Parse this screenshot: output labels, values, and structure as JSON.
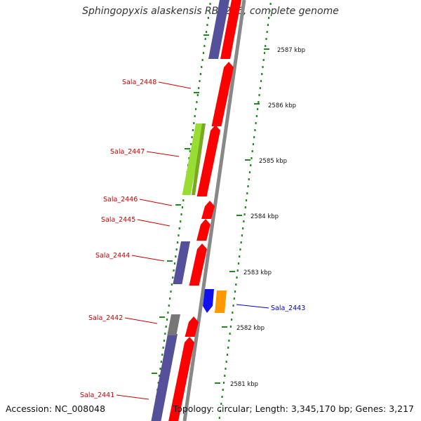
{
  "title": "Sphingopyxis alaskensis RB2256, complete genome",
  "accession": "Accession: NC_008048",
  "topology": "Topology: circular; Length: 3,345,170 bp; Genes: 3,217",
  "ruler": [
    {
      "label": "2587 kbp"
    },
    {
      "label": "2586 kbp"
    },
    {
      "label": "2585 kbp"
    },
    {
      "label": "2584 kbp"
    },
    {
      "label": "2583 kbp"
    },
    {
      "label": "2582 kbp"
    },
    {
      "label": "2581 kbp"
    }
  ],
  "gene_labels": [
    {
      "label": "Sala_2448",
      "color": "#cc0000"
    },
    {
      "label": "Sala_2447",
      "color": "#cc0000"
    },
    {
      "label": "Sala_2446",
      "color": "#cc0000"
    },
    {
      "label": "Sala_2445",
      "color": "#cc0000"
    },
    {
      "label": "Sala_2444",
      "color": "#cc0000"
    },
    {
      "label": "Sala_2443",
      "color": "#0000cc"
    },
    {
      "label": "Sala_2442",
      "color": "#cc0000"
    },
    {
      "label": "Sala_2441",
      "color": "#cc0000"
    }
  ],
  "colors": {
    "cds": "#ff0000",
    "gc_skew_purple": "#55509a",
    "green_feature": "#99dd33",
    "blue_feature": "#1111ee",
    "orange_feature": "#ff9900",
    "gray_feature": "#777777",
    "backbone": "#888888",
    "ruler_dots": "#228822"
  }
}
